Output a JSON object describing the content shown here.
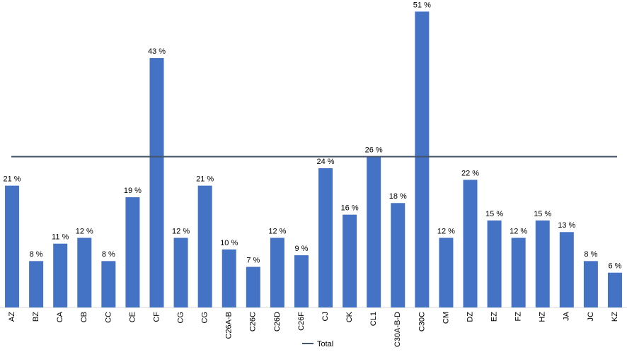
{
  "chart_data": {
    "type": "bar",
    "categories": [
      "AZ",
      "BZ",
      "CA",
      "CB",
      "CC",
      "CE",
      "CF",
      "CG",
      "CG",
      "C26A-B",
      "C26C",
      "C26D",
      "C26F",
      "CJ",
      "CK",
      "CL1",
      "C30A-B-D",
      "C30C",
      "CM",
      "DZ",
      "EZ",
      "FZ",
      "HZ",
      "JA",
      "JC",
      "KZ"
    ],
    "values": [
      21,
      8,
      11,
      12,
      8,
      19,
      43,
      12,
      21,
      10,
      7,
      12,
      9,
      24,
      16,
      26,
      18,
      51,
      12,
      22,
      15,
      12,
      15,
      13,
      8,
      6
    ],
    "value_labels": [
      "21 %",
      "8 %",
      "11 %",
      "12 %",
      "8 %",
      "19 %",
      "43 %",
      "12 %",
      "21 %",
      "10 %",
      "7 %",
      "12 %",
      "9 %",
      "24 %",
      "16 %",
      "26 %",
      "18 %",
      "51 %",
      "12 %",
      "22 %",
      "15 %",
      "12 %",
      "15 %",
      "13 %",
      "8 %",
      "6 %"
    ],
    "color": "#4472c4",
    "reference_line": {
      "name": "Total",
      "value": 26,
      "color": "#44546a"
    },
    "ylim": [
      0,
      53
    ]
  }
}
